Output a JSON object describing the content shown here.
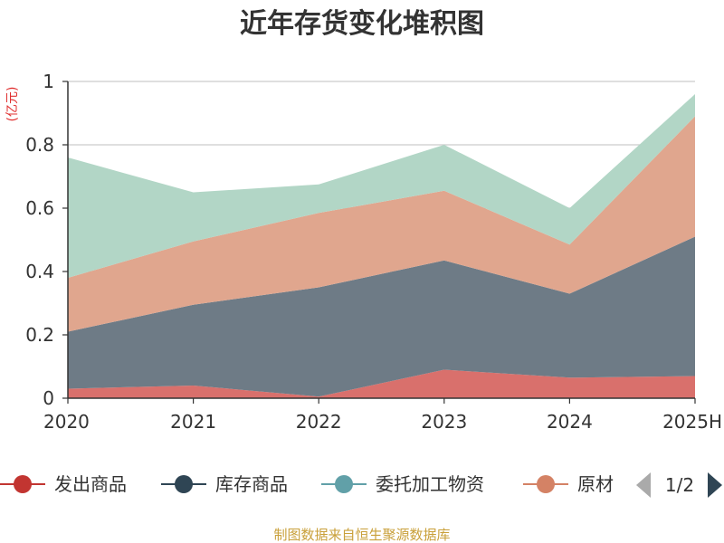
{
  "chart_data": {
    "type": "area",
    "stacked": true,
    "title": "近年存货变化堆积图",
    "ylabel": "(亿元)",
    "x": [
      "2020",
      "2021",
      "2022",
      "2023",
      "2024",
      "2025H"
    ],
    "ylim": [
      0,
      1
    ],
    "yticks": [
      "0",
      "0.2",
      "0.4",
      "0.6",
      "0.8",
      "1"
    ],
    "grid": true,
    "legend_position": "bottom",
    "series": [
      {
        "name": "发出商品",
        "color": "#d9706c",
        "line_color": "#c23531",
        "values": [
          0.03,
          0.04,
          0.005,
          0.09,
          0.065,
          0.07
        ]
      },
      {
        "name": "库存商品",
        "color": "#6e7b86",
        "line_color": "#2f4554",
        "values": [
          0.18,
          0.255,
          0.345,
          0.345,
          0.265,
          0.44
        ]
      },
      {
        "name": "原材料",
        "color": "#e0a68e",
        "line_color": "#d48265",
        "values": [
          0.17,
          0.2,
          0.235,
          0.22,
          0.155,
          0.38
        ]
      },
      {
        "name": "委托加工物资",
        "color": "#b2d6c6",
        "line_color": "#61a0a8",
        "values": [
          0.38,
          0.155,
          0.09,
          0.145,
          0.115,
          0.07
        ]
      }
    ],
    "legend": [
      {
        "name": "发出商品",
        "color": "#c23531"
      },
      {
        "name": "库存商品",
        "color": "#2f4554"
      },
      {
        "name": "委托加工物资",
        "color": "#61a0a8"
      },
      {
        "name": "原材",
        "color": "#d48265"
      }
    ],
    "legend_page": "1/2",
    "source": "制图数据来自恒生聚源数据库"
  }
}
